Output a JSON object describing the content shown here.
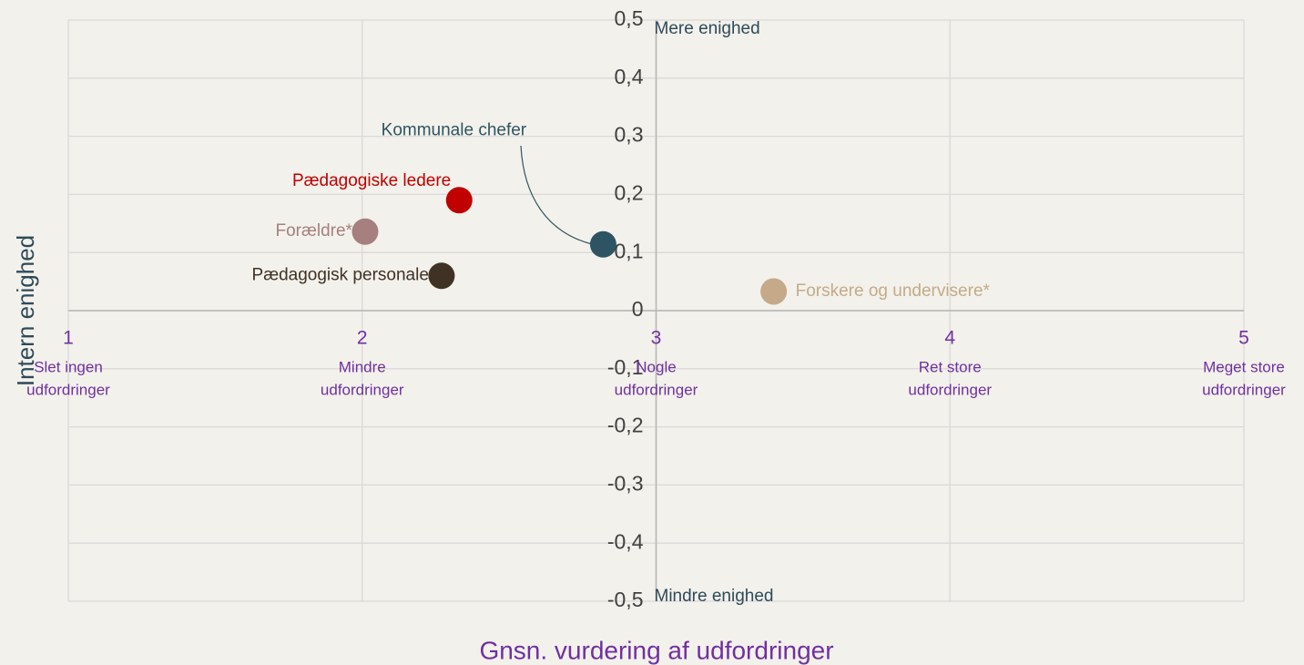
{
  "chart_data": {
    "type": "scatter",
    "xlabel": "Gnsn. vurdering af udfordringer",
    "ylabel": "Intern enighed",
    "xlim": [
      1,
      5
    ],
    "xticks": [
      1,
      2,
      3,
      4,
      5
    ],
    "x_tick_descriptions": [
      [
        "Slet ingen",
        "udfordringer"
      ],
      [
        "Mindre",
        "udfordringer"
      ],
      [
        "Nogle",
        "udfordringer"
      ],
      [
        "Ret store",
        "udfordringer"
      ],
      [
        "Meget store",
        "udfordringer"
      ]
    ],
    "ylim": [
      -0.5,
      0.5
    ],
    "yticks": [
      {
        "value": 0.5,
        "label": "0,5"
      },
      {
        "value": 0.4,
        "label": "0,4"
      },
      {
        "value": 0.3,
        "label": "0,3"
      },
      {
        "value": 0.2,
        "label": "0,2"
      },
      {
        "value": 0.1,
        "label": "0,1"
      },
      0,
      {
        "value": -0.1,
        "label": "-0,1"
      },
      {
        "value": -0.2,
        "label": "-0,2"
      },
      {
        "value": -0.3,
        "label": "-0,3"
      },
      {
        "value": -0.4,
        "label": "-0,4"
      },
      {
        "value": -0.5,
        "label": "-0,5"
      }
    ],
    "annotations": [
      "Mere enighed",
      "Mindre enighed"
    ],
    "grid": true,
    "series": [
      {
        "name": "Pædagogiske ledere",
        "color": "#c00000",
        "x": [
          2.33
        ],
        "values": [
          0.19
        ]
      },
      {
        "name": "Forældre*",
        "color": "#a67f7f",
        "x": [
          2.01
        ],
        "values": [
          0.136
        ]
      },
      {
        "name": "Pædagogisk personale",
        "color": "#3f3224",
        "x": [
          2.27
        ],
        "values": [
          0.06
        ]
      },
      {
        "name": "Kommunale chefer",
        "color": "#2e5463",
        "x": [
          2.82
        ],
        "values": [
          0.114
        ]
      },
      {
        "name": "Forskere og undervisere*",
        "color": "#c4aa88",
        "x": [
          3.4
        ],
        "values": [
          0.033
        ]
      }
    ]
  }
}
